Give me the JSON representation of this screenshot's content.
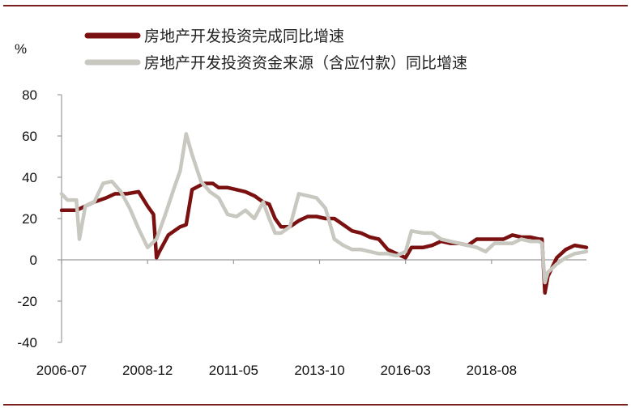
{
  "chart_data": {
    "type": "line",
    "ylabel": "%",
    "ylim": [
      -40,
      80
    ],
    "yticks": [
      -40,
      -20,
      0,
      20,
      40,
      60,
      80
    ],
    "xlim": [
      "2006-07",
      "2021-04"
    ],
    "xticks": [
      "2006-07",
      "2008-12",
      "2011-05",
      "2013-10",
      "2016-03",
      "2018-08"
    ],
    "grid": false,
    "legend_position": "top",
    "colors": {
      "frame": "#7a1f1f",
      "axis": "#9a9a9a"
    },
    "series": [
      {
        "name": "房地产开发投资完成同比增速",
        "color": "#7b1010",
        "points": [
          [
            "2006-07",
            24
          ],
          [
            "2006-12",
            24
          ],
          [
            "2007-03",
            26
          ],
          [
            "2007-06",
            28
          ],
          [
            "2007-10",
            30
          ],
          [
            "2008-01",
            32
          ],
          [
            "2008-05",
            32
          ],
          [
            "2008-09",
            33
          ],
          [
            "2008-12",
            26
          ],
          [
            "2009-02",
            22
          ],
          [
            "2009-03",
            1
          ],
          [
            "2009-04",
            4
          ],
          [
            "2009-07",
            12
          ],
          [
            "2009-11",
            16
          ],
          [
            "2010-01",
            17
          ],
          [
            "2010-03",
            34
          ],
          [
            "2010-07",
            37
          ],
          [
            "2010-10",
            37
          ],
          [
            "2010-12",
            35
          ],
          [
            "2011-03",
            35
          ],
          [
            "2011-06",
            34
          ],
          [
            "2011-09",
            33
          ],
          [
            "2011-12",
            31
          ],
          [
            "2012-03",
            28
          ],
          [
            "2012-05",
            27
          ],
          [
            "2012-07",
            20
          ],
          [
            "2012-09",
            16
          ],
          [
            "2012-12",
            16
          ],
          [
            "2013-03",
            19
          ],
          [
            "2013-06",
            21
          ],
          [
            "2013-09",
            21
          ],
          [
            "2013-12",
            20
          ],
          [
            "2014-03",
            20
          ],
          [
            "2014-06",
            17
          ],
          [
            "2014-09",
            14
          ],
          [
            "2014-12",
            13
          ],
          [
            "2015-03",
            11
          ],
          [
            "2015-06",
            10
          ],
          [
            "2015-09",
            5
          ],
          [
            "2015-12",
            3
          ],
          [
            "2016-03",
            1
          ],
          [
            "2016-05",
            6
          ],
          [
            "2016-09",
            6
          ],
          [
            "2016-12",
            7
          ],
          [
            "2017-03",
            9
          ],
          [
            "2017-06",
            8
          ],
          [
            "2017-09",
            8
          ],
          [
            "2017-12",
            7
          ],
          [
            "2018-03",
            10
          ],
          [
            "2018-06",
            10
          ],
          [
            "2018-09",
            10
          ],
          [
            "2018-12",
            10
          ],
          [
            "2019-03",
            12
          ],
          [
            "2019-06",
            11
          ],
          [
            "2019-09",
            11
          ],
          [
            "2019-12",
            10
          ],
          [
            "2020-01",
            10
          ],
          [
            "2020-02",
            -16
          ],
          [
            "2020-03",
            -8
          ],
          [
            "2020-06",
            1
          ],
          [
            "2020-09",
            5
          ],
          [
            "2020-12",
            7
          ],
          [
            "2021-04",
            6
          ]
        ]
      },
      {
        "name": "房地产开发投资资金来源（含应付款）同比增速",
        "color": "#c8c8c0",
        "points": [
          [
            "2006-07",
            32
          ],
          [
            "2006-09",
            29
          ],
          [
            "2006-12",
            29
          ],
          [
            "2007-01",
            10
          ],
          [
            "2007-03",
            26
          ],
          [
            "2007-06",
            28
          ],
          [
            "2007-09",
            37
          ],
          [
            "2007-12",
            38
          ],
          [
            "2008-03",
            33
          ],
          [
            "2008-06",
            25
          ],
          [
            "2008-09",
            15
          ],
          [
            "2008-12",
            6
          ],
          [
            "2009-03",
            10
          ],
          [
            "2009-06",
            22
          ],
          [
            "2009-09",
            35
          ],
          [
            "2009-11",
            43
          ],
          [
            "2010-01",
            61
          ],
          [
            "2010-03",
            51
          ],
          [
            "2010-06",
            38
          ],
          [
            "2010-09",
            33
          ],
          [
            "2010-12",
            30
          ],
          [
            "2011-03",
            22
          ],
          [
            "2011-06",
            21
          ],
          [
            "2011-09",
            24
          ],
          [
            "2011-12",
            20
          ],
          [
            "2012-03",
            28
          ],
          [
            "2012-05",
            20
          ],
          [
            "2012-07",
            13
          ],
          [
            "2012-09",
            13
          ],
          [
            "2012-12",
            16
          ],
          [
            "2013-03",
            32
          ],
          [
            "2013-06",
            31
          ],
          [
            "2013-09",
            30
          ],
          [
            "2013-12",
            25
          ],
          [
            "2014-03",
            10
          ],
          [
            "2014-06",
            7
          ],
          [
            "2014-09",
            5
          ],
          [
            "2014-12",
            5
          ],
          [
            "2015-03",
            4
          ],
          [
            "2015-06",
            3
          ],
          [
            "2015-09",
            3
          ],
          [
            "2015-12",
            2
          ],
          [
            "2016-03",
            4
          ],
          [
            "2016-05",
            14
          ],
          [
            "2016-09",
            13
          ],
          [
            "2016-12",
            13
          ],
          [
            "2017-03",
            10
          ],
          [
            "2017-06",
            9
          ],
          [
            "2017-09",
            8
          ],
          [
            "2017-12",
            7
          ],
          [
            "2018-03",
            6
          ],
          [
            "2018-06",
            4
          ],
          [
            "2018-09",
            8
          ],
          [
            "2018-12",
            8
          ],
          [
            "2019-03",
            8
          ],
          [
            "2019-06",
            10
          ],
          [
            "2019-09",
            9
          ],
          [
            "2019-12",
            9
          ],
          [
            "2020-01",
            8
          ],
          [
            "2020-02",
            -11
          ],
          [
            "2020-03",
            -6
          ],
          [
            "2020-06",
            -2
          ],
          [
            "2020-09",
            1
          ],
          [
            "2020-12",
            3
          ],
          [
            "2021-04",
            4
          ]
        ]
      }
    ]
  }
}
